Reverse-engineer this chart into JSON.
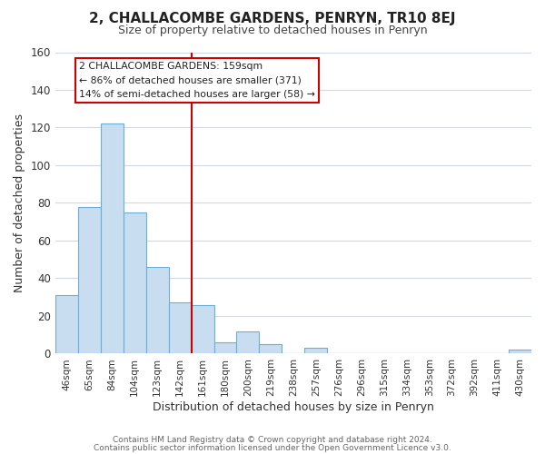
{
  "title": "2, CHALLACOMBE GARDENS, PENRYN, TR10 8EJ",
  "subtitle": "Size of property relative to detached houses in Penryn",
  "xlabel": "Distribution of detached houses by size in Penryn",
  "ylabel": "Number of detached properties",
  "bar_labels": [
    "46sqm",
    "65sqm",
    "84sqm",
    "104sqm",
    "123sqm",
    "142sqm",
    "161sqm",
    "180sqm",
    "200sqm",
    "219sqm",
    "238sqm",
    "257sqm",
    "276sqm",
    "296sqm",
    "315sqm",
    "334sqm",
    "353sqm",
    "372sqm",
    "392sqm",
    "411sqm",
    "430sqm"
  ],
  "bar_values": [
    31,
    78,
    122,
    75,
    46,
    27,
    26,
    6,
    12,
    5,
    0,
    3,
    0,
    0,
    0,
    0,
    0,
    0,
    0,
    0,
    2
  ],
  "bar_color": "#c8ddf0",
  "bar_edge_color": "#6baed6",
  "vline_x_index": 6,
  "vline_color": "#cc0000",
  "ylim": [
    0,
    160
  ],
  "yticks": [
    0,
    20,
    40,
    60,
    80,
    100,
    120,
    140,
    160
  ],
  "annotation_title": "2 CHALLACOMBE GARDENS: 159sqm",
  "annotation_line1": "← 86% of detached houses are smaller (371)",
  "annotation_line2": "14% of semi-detached houses are larger (58) →",
  "annotation_box_color": "#ffffff",
  "annotation_box_edge": "#cc0000",
  "footer1": "Contains HM Land Registry data © Crown copyright and database right 2024.",
  "footer2": "Contains public sector information licensed under the Open Government Licence v3.0.",
  "background_color": "#ffffff",
  "grid_color": "#d0d8e8"
}
